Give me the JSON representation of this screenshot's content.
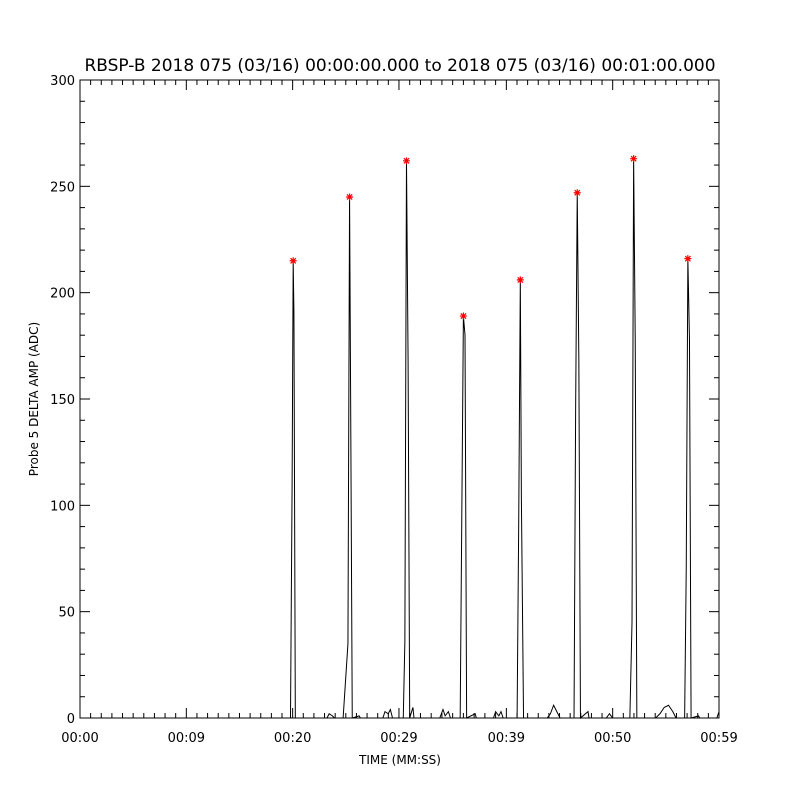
{
  "chart_data": {
    "type": "line",
    "title": "RBSP-B 2018 075 (03/16) 00:00:00.000 to 2018 075 (03/16) 00:01:00.000",
    "xlabel": "TIME (MM:SS)",
    "ylabel": "Probe 5 DELTA AMP (ADC)",
    "xlim": [
      0,
      59.5
    ],
    "ylim": [
      0,
      300
    ],
    "x_ticks": [
      {
        "value": 0,
        "label": "00:00"
      },
      {
        "value": 9.9,
        "label": "00:09"
      },
      {
        "value": 19.8,
        "label": "00:20"
      },
      {
        "value": 29.7,
        "label": "00:29"
      },
      {
        "value": 39.7,
        "label": "00:39"
      },
      {
        "value": 49.6,
        "label": "00:50"
      },
      {
        "value": 59.5,
        "label": "00:59"
      }
    ],
    "y_ticks": [
      0,
      50,
      100,
      150,
      200,
      250,
      300
    ],
    "grid": false,
    "series": [
      {
        "color": "#000000",
        "points": [
          [
            0,
            0
          ],
          [
            19.6,
            0
          ],
          [
            19.75,
            110
          ],
          [
            19.85,
            215
          ],
          [
            19.92,
            190
          ],
          [
            20.05,
            0
          ],
          [
            23.0,
            0
          ],
          [
            23.2,
            2
          ],
          [
            23.5,
            1
          ],
          [
            23.7,
            0
          ],
          [
            24.5,
            0
          ],
          [
            24.95,
            35
          ],
          [
            25.1,
            245
          ],
          [
            25.2,
            150
          ],
          [
            25.35,
            0
          ],
          [
            26.0,
            1
          ],
          [
            26.1,
            0
          ],
          [
            28.2,
            0
          ],
          [
            28.4,
            3
          ],
          [
            28.7,
            2
          ],
          [
            28.9,
            4
          ],
          [
            29.1,
            0
          ],
          [
            30.1,
            0
          ],
          [
            30.25,
            36
          ],
          [
            30.4,
            262
          ],
          [
            30.55,
            168
          ],
          [
            30.7,
            0
          ],
          [
            31.0,
            5
          ],
          [
            31.1,
            0
          ],
          [
            33.5,
            0
          ],
          [
            33.8,
            4
          ],
          [
            34.0,
            1
          ],
          [
            34.3,
            3
          ],
          [
            34.5,
            0
          ],
          [
            35.4,
            0
          ],
          [
            35.55,
            95
          ],
          [
            35.7,
            189
          ],
          [
            35.85,
            180
          ],
          [
            36.0,
            0
          ],
          [
            36.8,
            2
          ],
          [
            36.9,
            0
          ],
          [
            38.5,
            0
          ],
          [
            38.7,
            3
          ],
          [
            39.0,
            1
          ],
          [
            39.2,
            3
          ],
          [
            39.4,
            0
          ],
          [
            40.7,
            0
          ],
          [
            40.85,
            92
          ],
          [
            41.0,
            206
          ],
          [
            41.1,
            103
          ],
          [
            41.3,
            0
          ],
          [
            43.5,
            0
          ],
          [
            43.8,
            2
          ],
          [
            44.1,
            6
          ],
          [
            44.4,
            3
          ],
          [
            44.7,
            0
          ],
          [
            46.0,
            0
          ],
          [
            46.15,
            145
          ],
          [
            46.3,
            247
          ],
          [
            46.45,
            168
          ],
          [
            46.6,
            0
          ],
          [
            47.3,
            3
          ],
          [
            47.4,
            0
          ],
          [
            49.0,
            0
          ],
          [
            49.3,
            2
          ],
          [
            49.6,
            0
          ],
          [
            51.2,
            0
          ],
          [
            51.4,
            45
          ],
          [
            51.55,
            263
          ],
          [
            51.7,
            178
          ],
          [
            51.85,
            0
          ],
          [
            52.5,
            0
          ],
          [
            53.6,
            0
          ],
          [
            54.0,
            2
          ],
          [
            54.4,
            5
          ],
          [
            54.8,
            6
          ],
          [
            55.2,
            3
          ],
          [
            55.5,
            0
          ],
          [
            56.3,
            0
          ],
          [
            56.45,
            70
          ],
          [
            56.6,
            216
          ],
          [
            56.75,
            178
          ],
          [
            56.9,
            0
          ],
          [
            57.6,
            1
          ],
          [
            57.7,
            0
          ],
          [
            59.3,
            0
          ],
          [
            59.5,
            3
          ]
        ]
      }
    ],
    "peak_markers": {
      "color": "#ff0000",
      "symbol": "*",
      "points": [
        [
          19.85,
          215
        ],
        [
          25.1,
          245
        ],
        [
          30.4,
          262
        ],
        [
          35.7,
          189
        ],
        [
          41.0,
          206
        ],
        [
          46.3,
          247
        ],
        [
          51.55,
          263
        ],
        [
          56.6,
          216
        ]
      ]
    }
  }
}
